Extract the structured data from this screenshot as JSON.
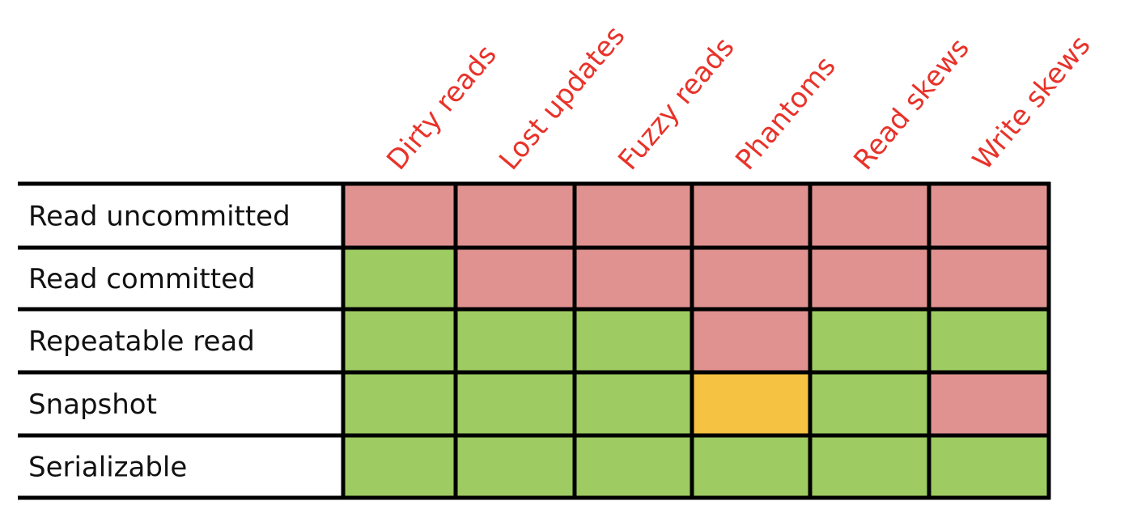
{
  "colors": {
    "not_prevented": "#e09291",
    "prevented": "#9ecb62",
    "partial": "#f5c241",
    "grid": "#000000",
    "header_text": "#e8332a",
    "label_text": "#111111"
  },
  "legend_keys": {
    "N": "not_prevented",
    "Y": "prevented",
    "P": "partial"
  },
  "columns": [
    "Dirty reads",
    "Lost updates",
    "Fuzzy reads",
    "Phantoms",
    "Read skews",
    "Write skews"
  ],
  "rows": [
    {
      "label": "Read uncommitted",
      "cells": [
        "N",
        "N",
        "N",
        "N",
        "N",
        "N"
      ]
    },
    {
      "label": "Read committed",
      "cells": [
        "Y",
        "N",
        "N",
        "N",
        "N",
        "N"
      ]
    },
    {
      "label": "Repeatable read",
      "cells": [
        "Y",
        "Y",
        "Y",
        "N",
        "Y",
        "Y"
      ]
    },
    {
      "label": "Snapshot",
      "cells": [
        "Y",
        "Y",
        "Y",
        "P",
        "Y",
        "N"
      ]
    },
    {
      "label": "Serializable",
      "cells": [
        "Y",
        "Y",
        "Y",
        "Y",
        "Y",
        "Y"
      ]
    }
  ]
}
